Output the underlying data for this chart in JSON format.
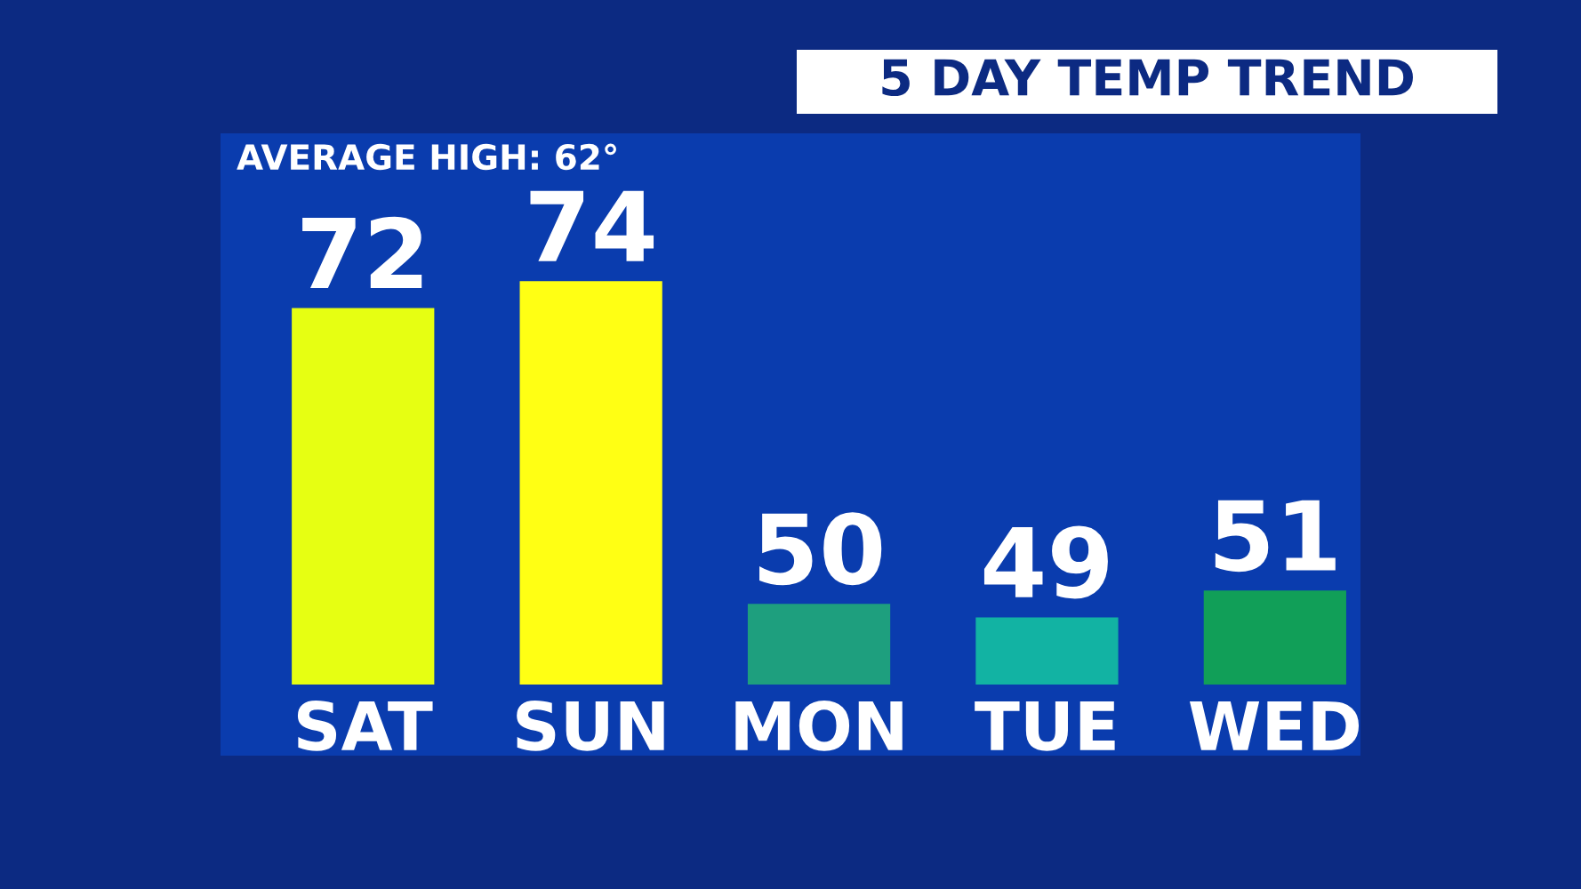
{
  "chart_data": {
    "type": "bar",
    "title": "5 DAY TEMP TREND",
    "categories": [
      "SAT",
      "SUN",
      "MON",
      "TUE",
      "WED"
    ],
    "values": [
      72,
      74,
      50,
      49,
      51
    ],
    "colors": [
      "#e6ff12",
      "#ffff14",
      "#1e9f7e",
      "#12b3a3",
      "#119f58"
    ],
    "ylim": [
      44,
      85
    ],
    "tick_labels": "x",
    "data_labels": true,
    "grid": false,
    "legend": false,
    "annotations": [
      "AVERAGE HIGH: 62°"
    ]
  }
}
